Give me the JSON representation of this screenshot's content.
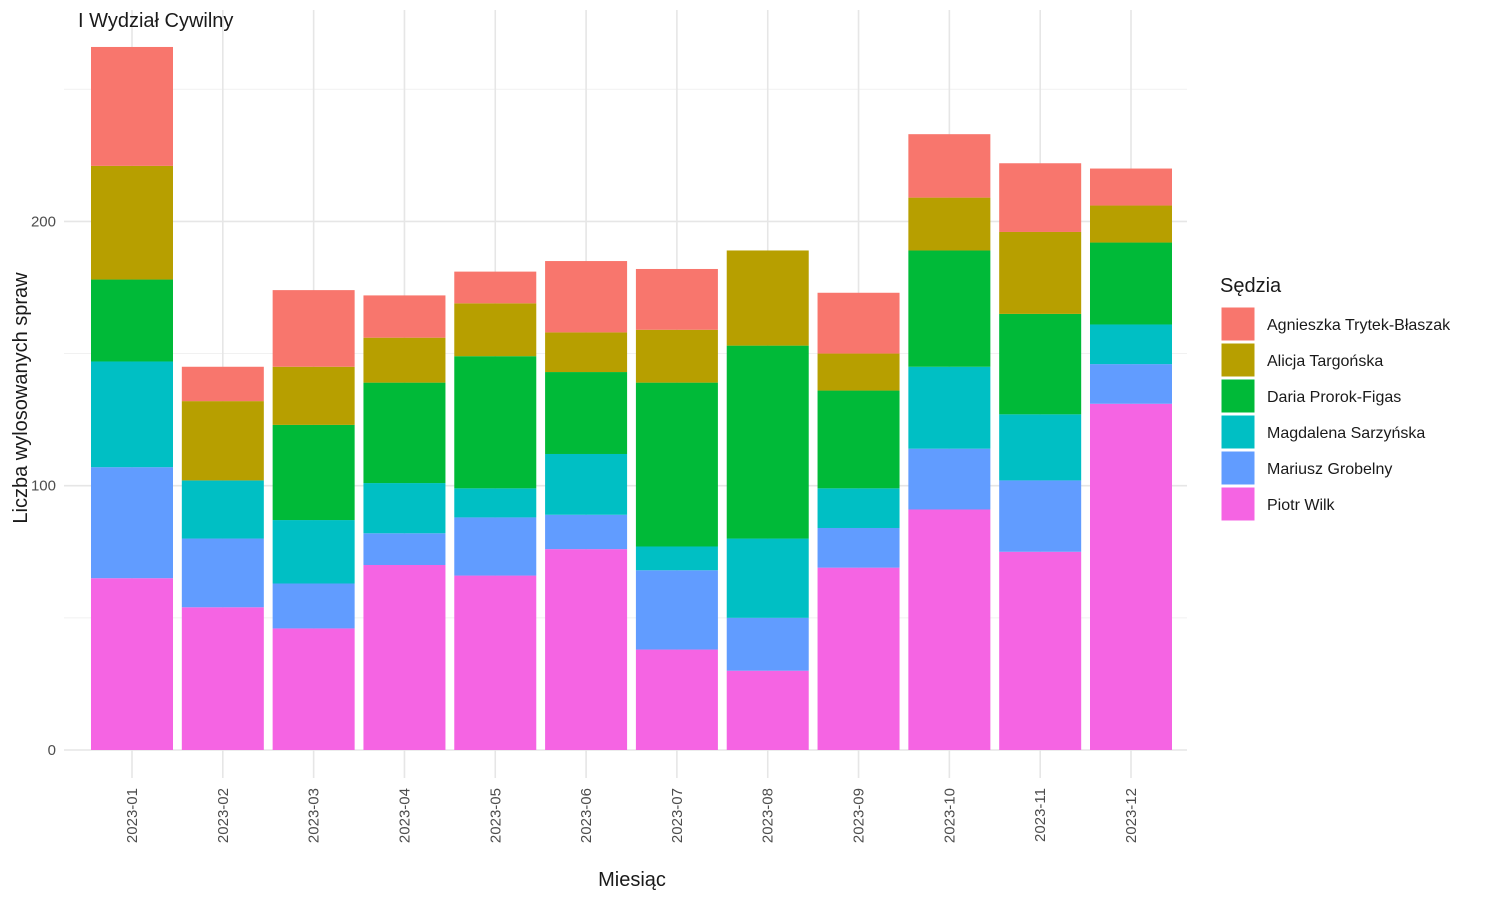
{
  "chart_data": {
    "type": "bar",
    "stacked": true,
    "title": "I Wydział Cywilny",
    "xlabel": "Miesiąc",
    "ylabel": "Liczba wylosowanych spraw",
    "ylim": [
      0,
      280
    ],
    "yticks": [
      "0",
      "100",
      "200"
    ],
    "grid": true,
    "legend_title": "Sędzia",
    "legend_position": "right",
    "categories": [
      "2023-01",
      "2023-02",
      "2023-03",
      "2023-04",
      "2023-05",
      "2023-06",
      "2023-07",
      "2023-08",
      "2023-09",
      "2023-10",
      "2023-11",
      "2023-12"
    ],
    "series": [
      {
        "name": "Piotr Wilk",
        "color": "#F564E3",
        "values": [
          65,
          54,
          46,
          70,
          66,
          76,
          38,
          30,
          69,
          91,
          75,
          131
        ]
      },
      {
        "name": "Mariusz Grobelny",
        "color": "#619CFF",
        "values": [
          42,
          26,
          17,
          12,
          22,
          13,
          30,
          20,
          15,
          23,
          27,
          15
        ]
      },
      {
        "name": "Magdalena Sarzyńska",
        "color": "#00BFC4",
        "values": [
          40,
          22,
          24,
          19,
          11,
          23,
          9,
          30,
          15,
          31,
          25,
          15
        ]
      },
      {
        "name": "Daria Prorok-Figas",
        "color": "#00BA38",
        "values": [
          31,
          0,
          36,
          38,
          50,
          31,
          62,
          73,
          37,
          44,
          38,
          31
        ]
      },
      {
        "name": "Alicja Targońska",
        "color": "#B79F00",
        "values": [
          43,
          30,
          22,
          17,
          20,
          15,
          20,
          36,
          14,
          20,
          31,
          14
        ]
      },
      {
        "name": "Agnieszka Trytek-Błaszak",
        "color": "#F8766D",
        "values": [
          45,
          13,
          29,
          16,
          12,
          27,
          23,
          0,
          23,
          24,
          26,
          14
        ]
      }
    ],
    "legend_order": [
      "Agnieszka Trytek-Błaszak",
      "Alicja Targońska",
      "Daria Prorok-Figas",
      "Magdalena Sarzyńska",
      "Mariusz Grobelny",
      "Piotr Wilk"
    ]
  }
}
